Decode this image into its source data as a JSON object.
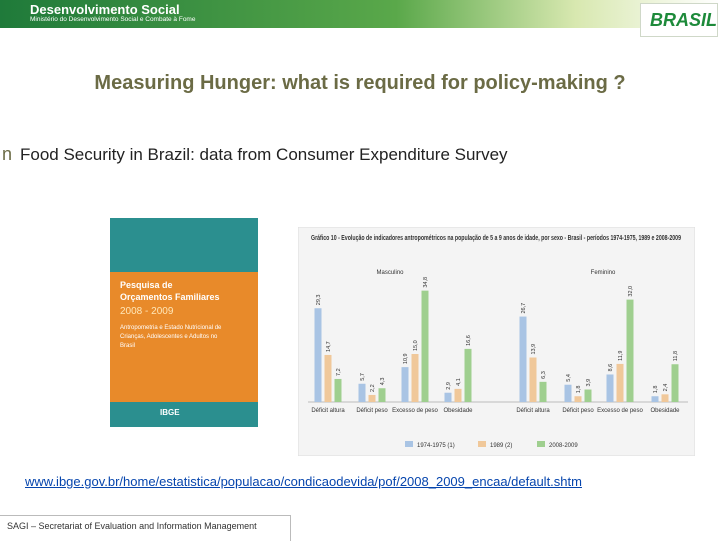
{
  "header": {
    "brand": "Desenvolvimento Social",
    "ministry": "Ministério do Desenvolvimento Social e Combate à Fome",
    "logo": "BRASIL"
  },
  "title": "Measuring Hunger: what is required for policy-making ?",
  "bullet": "n",
  "subtitle": "Food Security in Brazil: data from Consumer Expenditure Survey",
  "cover": {
    "line1": "Pesquisa de",
    "line2": "Orçamentos Familiares",
    "years": "2008 - 2009",
    "topic": "Antropometria e Estado Nutricional de Crianças, Adolescentes e Adultos no Brasil",
    "publisher": "IBGE"
  },
  "chart_data": {
    "type": "bar",
    "title": "Gráfico 10 - Evolução de indicadores antropométricos na população de 5 a 9 anos de idade, por sexo - Brasil - períodos 1974-1975, 1989 e 2008-2009",
    "groups": [
      "Masculino",
      "Feminino"
    ],
    "categories": [
      "Déficit altura",
      "Déficit peso",
      "Excesso de peso",
      "Obesidade",
      "Déficit altura",
      "Déficit peso",
      "Excesso de peso",
      "Obesidade"
    ],
    "series": [
      {
        "name": "1974-1975 (1)",
        "color": "#a9c4e4",
        "values": [
          29.3,
          5.7,
          10.9,
          2.9,
          26.7,
          5.4,
          8.6,
          1.8
        ],
        "value_labels": [
          "29,3",
          "5,7",
          "10,9",
          "2,9",
          "26,7",
          "5,4",
          "8,6",
          "1,8"
        ]
      },
      {
        "name": "1989 (2)",
        "color": "#f0c89a",
        "values": [
          14.7,
          2.2,
          15.0,
          4.1,
          13.9,
          1.8,
          11.9,
          2.4
        ],
        "value_labels": [
          "14,7",
          "2,2",
          "15,0",
          "4,1",
          "13,9",
          "1,8",
          "11,9",
          "2,4"
        ]
      },
      {
        "name": "2008-2009",
        "color": "#9fcf8f",
        "values": [
          7.2,
          4.3,
          34.8,
          16.6,
          6.3,
          3.9,
          32.0,
          11.8
        ],
        "value_labels": [
          "7,2",
          "4,3",
          "34,8",
          "16,6",
          "6,3",
          "3,9",
          "32,0",
          "11,8"
        ]
      }
    ]
  },
  "link": "www.ibge.gov.br/home/estatistica/populacao/condicaodevida/pof/2008_2009_encaa/default.shtm",
  "footer": "SAGI – Secretariat of Evaluation and Information Management"
}
